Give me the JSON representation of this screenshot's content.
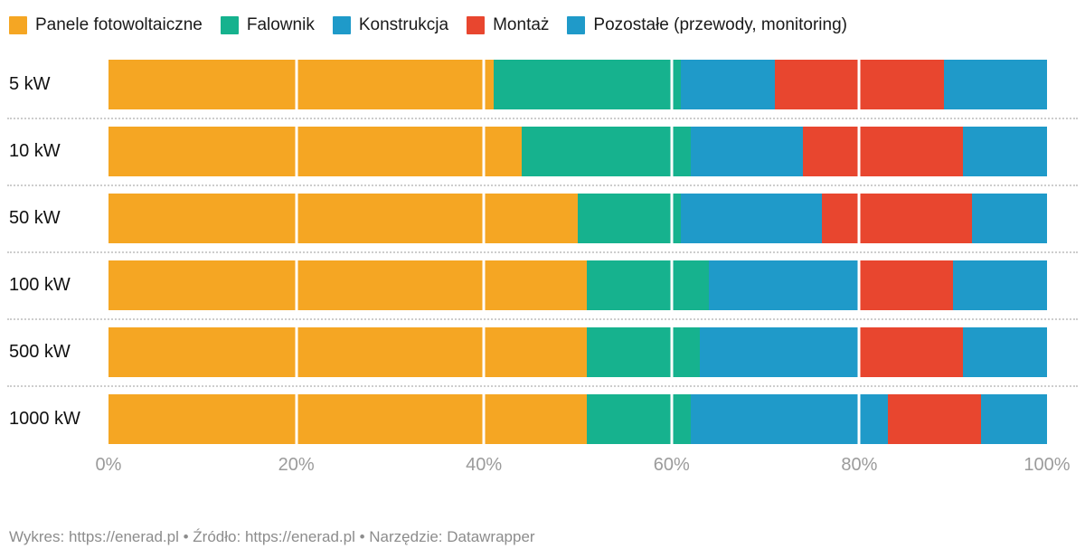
{
  "colors": {
    "panele": "#f5a623",
    "falownik": "#16b28e",
    "konstrukcja": "#1f9ac9",
    "montaz": "#e8462f",
    "pozostale": "#1f9ac9",
    "axis_text": "#9b9b9b",
    "footer_text": "#8c8c8c"
  },
  "legend": [
    {
      "label": "Panele fotowoltaiczne",
      "color": "#f5a623"
    },
    {
      "label": "Falownik",
      "color": "#16b28e"
    },
    {
      "label": "Konstrukcja",
      "color": "#1f9ac9"
    },
    {
      "label": "Montaż",
      "color": "#e8462f"
    },
    {
      "label": "Pozostałe (przewody, monitoring)",
      "color": "#1f9ac9"
    }
  ],
  "chart_data": {
    "type": "bar",
    "stacked": true,
    "orientation": "horizontal",
    "unit": "%",
    "categories": [
      "5 kW",
      "10 kW",
      "50 kW",
      "100 kW",
      "500 kW",
      "1000 kW"
    ],
    "series": [
      {
        "name": "Panele fotowoltaiczne",
        "color": "#f5a623",
        "values": [
          41,
          44,
          50,
          51,
          51,
          51
        ]
      },
      {
        "name": "Falownik",
        "color": "#16b28e",
        "values": [
          20,
          18,
          11,
          13,
          12,
          11
        ]
      },
      {
        "name": "Konstrukcja",
        "color": "#1f9ac9",
        "values": [
          10,
          12,
          15,
          16,
          17,
          21
        ]
      },
      {
        "name": "Montaż",
        "color": "#e8462f",
        "values": [
          18,
          17,
          16,
          10,
          11,
          10
        ]
      },
      {
        "name": "Pozostałe (przewody, monitoring)",
        "color": "#1f9ac9",
        "values": [
          11,
          9,
          8,
          10,
          9,
          7
        ]
      }
    ],
    "x_axis": {
      "ticks": [
        "0%",
        "20%",
        "40%",
        "60%",
        "80%",
        "100%"
      ],
      "tick_values": [
        0,
        20,
        40,
        60,
        80,
        100
      ],
      "range": [
        0,
        100
      ],
      "grid": true,
      "gridline_values": [
        20,
        40,
        60,
        80
      ]
    },
    "legend_position": "top"
  },
  "footer": {
    "parts": [
      {
        "text": "Wykres: "
      },
      {
        "text": "https://enerad.pl",
        "link": true
      },
      {
        "text": " • "
      },
      {
        "text": "Źródło: "
      },
      {
        "text": "https://enerad.pl",
        "link": true
      },
      {
        "text": " • "
      },
      {
        "text": "Narzędzie: "
      },
      {
        "text": "Datawrapper",
        "link": true
      }
    ]
  }
}
